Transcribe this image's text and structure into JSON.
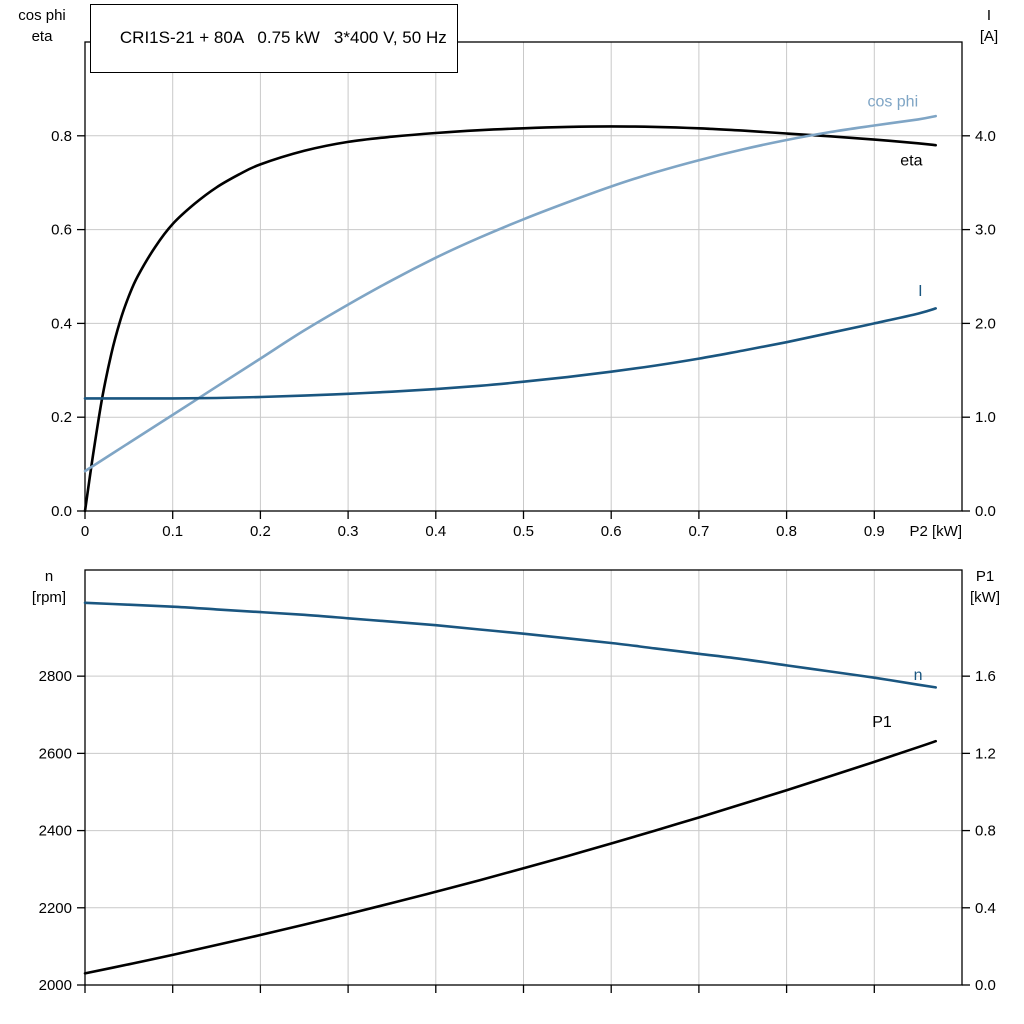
{
  "header": {
    "title": "CRI1S-21 + 80A   0.75 kW   3*400 V, 50 Hz"
  },
  "colors": {
    "black": "#000000",
    "light_blue": "#7fa5c5",
    "dark_blue": "#1a5680",
    "grid": "#c9c9c9",
    "frame": "#000000",
    "background": "#ffffff"
  },
  "chart_data": [
    {
      "type": "line",
      "panel": "top",
      "x_axis": {
        "min": 0,
        "max": 1.0,
        "ticks": [
          0,
          0.1,
          0.2,
          0.3,
          0.4,
          0.5,
          0.6,
          0.7,
          0.8,
          0.9
        ],
        "tick_labels": [
          "0",
          "0.1",
          "0.2",
          "0.3",
          "0.4",
          "0.5",
          "0.6",
          "0.7",
          "0.8",
          "0.9"
        ],
        "show_labels": true,
        "axis_label": "P2 [kW]",
        "grid": true
      },
      "y_left": {
        "corner_label_lines": [
          "cos phi",
          "eta"
        ],
        "min": 0,
        "max": 1.0,
        "ticks": [
          0,
          0.2,
          0.4,
          0.6,
          0.8
        ],
        "tick_labels": [
          "0.0",
          "0.2",
          "0.4",
          "0.6",
          "0.8"
        ]
      },
      "y_right": {
        "corner_label_lines": [
          "I",
          "[A]"
        ],
        "min": 0,
        "max": 5.0,
        "ticks": [
          0,
          1,
          2,
          3,
          4
        ],
        "tick_labels": [
          "0.0",
          "1.0",
          "2.0",
          "3.0",
          "4.0"
        ]
      },
      "series": [
        {
          "name": "eta",
          "axis": "left",
          "color_key": "black",
          "label": "eta",
          "label_color_key": "black",
          "label_at": {
            "x": 0.955,
            "y": 0.737
          },
          "points": [
            [
              0,
              0
            ],
            [
              0.01,
              0.13
            ],
            [
              0.02,
              0.245
            ],
            [
              0.03,
              0.335
            ],
            [
              0.04,
              0.405
            ],
            [
              0.05,
              0.458
            ],
            [
              0.06,
              0.5
            ],
            [
              0.08,
              0.563
            ],
            [
              0.1,
              0.612
            ],
            [
              0.125,
              0.655
            ],
            [
              0.15,
              0.69
            ],
            [
              0.175,
              0.717
            ],
            [
              0.2,
              0.739
            ],
            [
              0.25,
              0.768
            ],
            [
              0.3,
              0.787
            ],
            [
              0.35,
              0.798
            ],
            [
              0.4,
              0.806
            ],
            [
              0.45,
              0.812
            ],
            [
              0.5,
              0.816
            ],
            [
              0.55,
              0.819
            ],
            [
              0.6,
              0.82
            ],
            [
              0.65,
              0.819
            ],
            [
              0.7,
              0.816
            ],
            [
              0.75,
              0.811
            ],
            [
              0.8,
              0.805
            ],
            [
              0.85,
              0.799
            ],
            [
              0.9,
              0.792
            ],
            [
              0.95,
              0.784
            ],
            [
              0.97,
              0.78
            ]
          ]
        },
        {
          "name": "cos_phi",
          "axis": "left",
          "color_key": "light_blue",
          "label": "cos phi",
          "label_color_key": "light_blue",
          "label_at": {
            "x": 0.95,
            "y": 0.862
          },
          "points": [
            [
              0,
              0.085
            ],
            [
              0.05,
              0.145
            ],
            [
              0.1,
              0.205
            ],
            [
              0.15,
              0.265
            ],
            [
              0.2,
              0.325
            ],
            [
              0.25,
              0.385
            ],
            [
              0.3,
              0.44
            ],
            [
              0.35,
              0.492
            ],
            [
              0.4,
              0.54
            ],
            [
              0.45,
              0.583
            ],
            [
              0.5,
              0.622
            ],
            [
              0.55,
              0.658
            ],
            [
              0.6,
              0.692
            ],
            [
              0.65,
              0.722
            ],
            [
              0.7,
              0.748
            ],
            [
              0.75,
              0.771
            ],
            [
              0.8,
              0.791
            ],
            [
              0.85,
              0.808
            ],
            [
              0.9,
              0.822
            ],
            [
              0.95,
              0.835
            ],
            [
              0.97,
              0.842
            ]
          ]
        },
        {
          "name": "I",
          "axis": "right",
          "color_key": "dark_blue",
          "label": "I",
          "label_color_key": "dark_blue",
          "label_at": {
            "x": 0.955,
            "y": 2.29
          },
          "points": [
            [
              0,
              1.2
            ],
            [
              0.05,
              1.2
            ],
            [
              0.1,
              1.2
            ],
            [
              0.15,
              1.205
            ],
            [
              0.2,
              1.215
            ],
            [
              0.25,
              1.23
            ],
            [
              0.3,
              1.25
            ],
            [
              0.35,
              1.272
            ],
            [
              0.4,
              1.3
            ],
            [
              0.45,
              1.335
            ],
            [
              0.5,
              1.378
            ],
            [
              0.55,
              1.428
            ],
            [
              0.6,
              1.485
            ],
            [
              0.65,
              1.55
            ],
            [
              0.7,
              1.625
            ],
            [
              0.75,
              1.71
            ],
            [
              0.8,
              1.8
            ],
            [
              0.85,
              1.9
            ],
            [
              0.9,
              2.0
            ],
            [
              0.95,
              2.105
            ],
            [
              0.97,
              2.16
            ]
          ]
        }
      ]
    },
    {
      "type": "line",
      "panel": "bottom",
      "x_axis": {
        "min": 0,
        "max": 1.0,
        "ticks": [
          0,
          0.1,
          0.2,
          0.3,
          0.4,
          0.5,
          0.6,
          0.7,
          0.8,
          0.9
        ],
        "tick_labels": [
          "",
          "",
          "",
          "",
          "",
          "",
          "",
          "",
          "",
          ""
        ],
        "show_labels": false,
        "axis_label": "",
        "grid": true
      },
      "y_left": {
        "corner_label_lines": [
          "n",
          "[rpm]"
        ],
        "min": 2000,
        "max": 3075,
        "ticks": [
          2000,
          2200,
          2400,
          2600,
          2800
        ],
        "tick_labels": [
          "2000",
          "2200",
          "2400",
          "2600",
          "2800"
        ]
      },
      "y_right": {
        "corner_label_lines": [
          "P1",
          "[kW]"
        ],
        "min": 0,
        "max": 2.15,
        "ticks": [
          0,
          0.4,
          0.8,
          1.2,
          1.6
        ],
        "tick_labels": [
          "0.0",
          "0.4",
          "0.8",
          "1.2",
          "1.6"
        ]
      },
      "series": [
        {
          "name": "n",
          "axis": "left",
          "color_key": "dark_blue",
          "label": "n",
          "label_color_key": "dark_blue",
          "label_at": {
            "x": 0.955,
            "y": 2790
          },
          "points": [
            [
              0,
              2990
            ],
            [
              0.05,
              2985
            ],
            [
              0.1,
              2980
            ],
            [
              0.15,
              2973
            ],
            [
              0.2,
              2966
            ],
            [
              0.25,
              2959
            ],
            [
              0.3,
              2950
            ],
            [
              0.35,
              2941
            ],
            [
              0.4,
              2932
            ],
            [
              0.45,
              2921
            ],
            [
              0.5,
              2910
            ],
            [
              0.55,
              2898
            ],
            [
              0.6,
              2886
            ],
            [
              0.65,
              2872
            ],
            [
              0.7,
              2858
            ],
            [
              0.75,
              2844
            ],
            [
              0.8,
              2828
            ],
            [
              0.85,
              2812
            ],
            [
              0.9,
              2796
            ],
            [
              0.95,
              2778
            ],
            [
              0.97,
              2771
            ]
          ]
        },
        {
          "name": "P1",
          "axis": "right",
          "color_key": "black",
          "label": "P1",
          "label_color_key": "black",
          "label_at": {
            "x": 0.92,
            "y": 1.337
          },
          "points": [
            [
              0,
              0.06
            ],
            [
              0.05,
              0.107
            ],
            [
              0.1,
              0.156
            ],
            [
              0.15,
              0.207
            ],
            [
              0.2,
              0.259
            ],
            [
              0.25,
              0.313
            ],
            [
              0.3,
              0.368
            ],
            [
              0.35,
              0.425
            ],
            [
              0.4,
              0.483
            ],
            [
              0.45,
              0.543
            ],
            [
              0.5,
              0.605
            ],
            [
              0.55,
              0.668
            ],
            [
              0.6,
              0.733
            ],
            [
              0.65,
              0.8
            ],
            [
              0.7,
              0.868
            ],
            [
              0.75,
              0.938
            ],
            [
              0.8,
              1.009
            ],
            [
              0.85,
              1.082
            ],
            [
              0.9,
              1.156
            ],
            [
              0.95,
              1.232
            ],
            [
              0.97,
              1.263
            ]
          ]
        }
      ]
    }
  ]
}
